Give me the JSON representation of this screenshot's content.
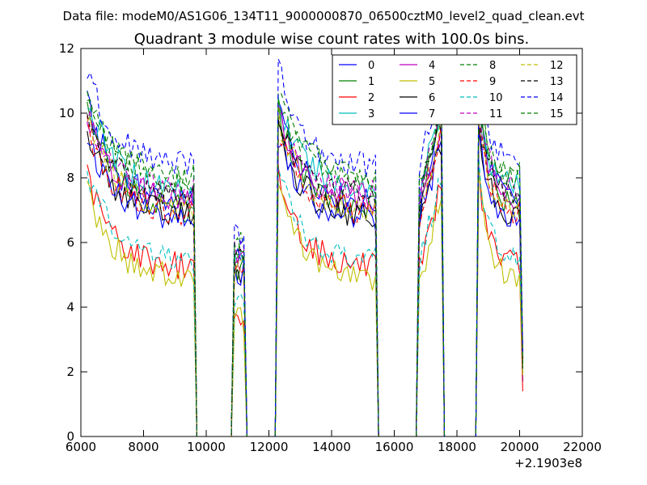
{
  "figure": {
    "suptitle": "Data file: modeM0/AS1G06_134T11_9000000870_06500cztM0_level2_quad_clean.evt",
    "title": "Quadrant 3 module wise count rates with 100.0s bins."
  },
  "chart_data": {
    "type": "line",
    "title": "Quadrant 3 module wise count rates with 100.0s bins.",
    "xlabel": "",
    "ylabel": "",
    "x_offset_label": "+2.1903e8",
    "xlim": [
      6000,
      22000
    ],
    "ylim": [
      0,
      12
    ],
    "x_ticks": [
      6000,
      8000,
      10000,
      12000,
      14000,
      16000,
      18000,
      20000,
      22000
    ],
    "y_ticks": [
      0,
      2,
      4,
      6,
      8,
      10,
      12
    ],
    "grid": false,
    "legend_position": "top-right",
    "legend_columns": 4,
    "series": [
      {
        "name": "0",
        "color": "#0000ff",
        "dash": "solid",
        "level": 7.2,
        "peak": 10.3,
        "tail": 1.7
      },
      {
        "name": "1",
        "color": "#008000",
        "dash": "solid",
        "level": 7.0,
        "peak": 10.2,
        "tail": 2.2
      },
      {
        "name": "2",
        "color": "#ff0000",
        "dash": "solid",
        "level": 5.2,
        "peak": 8.1,
        "tail": 1.4
      },
      {
        "name": "3",
        "color": "#00bfbf",
        "dash": "solid",
        "level": 7.6,
        "peak": 10.4,
        "tail": 2.0
      },
      {
        "name": "4",
        "color": "#bf00bf",
        "dash": "solid",
        "level": 7.3,
        "peak": 10.0,
        "tail": 2.6
      },
      {
        "name": "5",
        "color": "#bfbf00",
        "dash": "solid",
        "level": 4.8,
        "peak": 7.8,
        "tail": 1.9
      },
      {
        "name": "6",
        "color": "#000000",
        "dash": "solid",
        "level": 6.8,
        "peak": 9.4,
        "tail": 2.3
      },
      {
        "name": "7",
        "color": "#0000ff",
        "dash": "solid",
        "level": 6.7,
        "peak": 9.3,
        "tail": 2.1
      },
      {
        "name": "8",
        "color": "#008000",
        "dash": "dashed",
        "level": 7.9,
        "peak": 10.6,
        "tail": 2.0
      },
      {
        "name": "9",
        "color": "#ff0000",
        "dash": "dashed",
        "level": 6.9,
        "peak": 9.6,
        "tail": 2.5
      },
      {
        "name": "10",
        "color": "#00bfbf",
        "dash": "dashed",
        "level": 5.4,
        "peak": 8.2,
        "tail": 2.4
      },
      {
        "name": "11",
        "color": "#bf00bf",
        "dash": "dashed",
        "level": 7.5,
        "peak": 10.1,
        "tail": 2.8
      },
      {
        "name": "12",
        "color": "#bfbf00",
        "dash": "dashed",
        "level": 7.0,
        "peak": 9.9,
        "tail": 2.2
      },
      {
        "name": "13",
        "color": "#000000",
        "dash": "dashed",
        "level": 7.4,
        "peak": 10.0,
        "tail": 2.3
      },
      {
        "name": "14",
        "color": "#0000ff",
        "dash": "dashed",
        "level": 8.3,
        "peak": 11.4,
        "tail": 2.6
      },
      {
        "name": "15",
        "color": "#008000",
        "dash": "dashed",
        "level": 8.0,
        "peak": 10.6,
        "tail": 2.2
      }
    ],
    "segments": [
      {
        "start": 6200,
        "end": 9600,
        "decay": 2.2
      },
      {
        "start": 10900,
        "end": 11200,
        "decay": -1.2
      },
      {
        "start": 12300,
        "end": 15400,
        "decay": 1.3
      },
      {
        "start": 16800,
        "end": 17500,
        "decay": -0.5
      },
      {
        "start": 18700,
        "end": 20100,
        "decay": 0.9
      }
    ]
  }
}
